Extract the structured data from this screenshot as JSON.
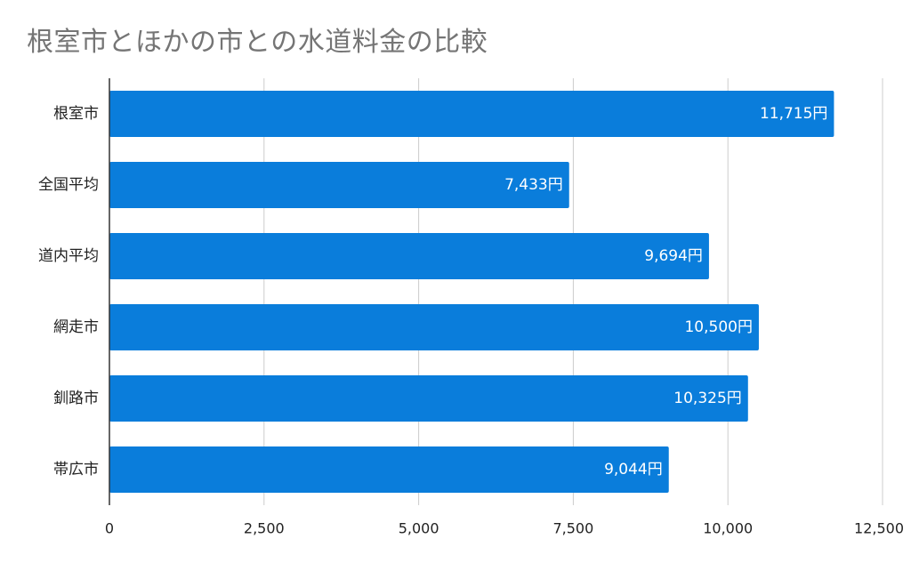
{
  "chart_data": {
    "type": "bar",
    "orientation": "horizontal",
    "title": "根室市とほかの市との水道料金の比較",
    "xlabel": "",
    "ylabel": "",
    "categories": [
      "根室市",
      "全国平均",
      "道内平均",
      "網走市",
      "釧路市",
      "帯広市"
    ],
    "values": [
      11715,
      7433,
      9694,
      10500,
      10325,
      9044
    ],
    "data_labels": [
      "11,715円",
      "7,433円",
      "9,694円",
      "10,500円",
      "10,325円",
      "9,044円"
    ],
    "xlim": [
      0,
      12500
    ],
    "ticks": [
      0,
      2500,
      5000,
      7500,
      10000,
      12500
    ],
    "tick_labels": [
      "0",
      "2,500",
      "5,000",
      "7,500",
      "10,000",
      "12,500"
    ],
    "grid": true,
    "legend": "none",
    "colors": {
      "bar": "#0a7ddb",
      "grid": "#cccccc",
      "axis": "#333333",
      "title": "#757575"
    }
  }
}
